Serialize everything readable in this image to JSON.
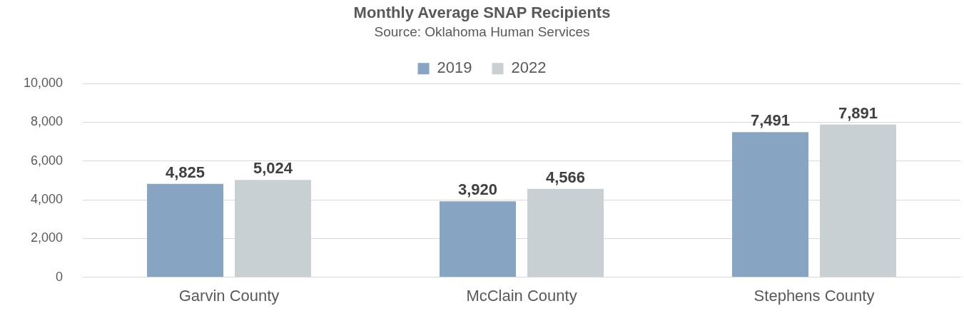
{
  "chart_data": {
    "type": "bar",
    "title": "Monthly Average SNAP Recipients",
    "subtitle": "Source: Oklahoma Human Services",
    "categories": [
      "Garvin County",
      "McClain County",
      "Stephens County"
    ],
    "series": [
      {
        "name": "2019",
        "color": "#87a5c2",
        "values": [
          4825,
          3920,
          7491
        ],
        "value_labels": [
          "4,825",
          "3,920",
          "7,491"
        ]
      },
      {
        "name": "2022",
        "color": "#c9d0d3",
        "values": [
          5024,
          4566,
          7891
        ],
        "value_labels": [
          "5,024",
          "4,566",
          "7,891"
        ]
      }
    ],
    "ylim": [
      0,
      10000
    ],
    "yticks": [
      0,
      {
        "value": 2000,
        "label": "2,000"
      },
      {
        "value": 4000,
        "label": "4,000"
      },
      {
        "value": 6000,
        "label": "6,000"
      },
      {
        "value": 8000,
        "label": "8,000"
      },
      {
        "value": 10000,
        "label": "10,000"
      }
    ],
    "grid": "y",
    "legend": "top"
  }
}
